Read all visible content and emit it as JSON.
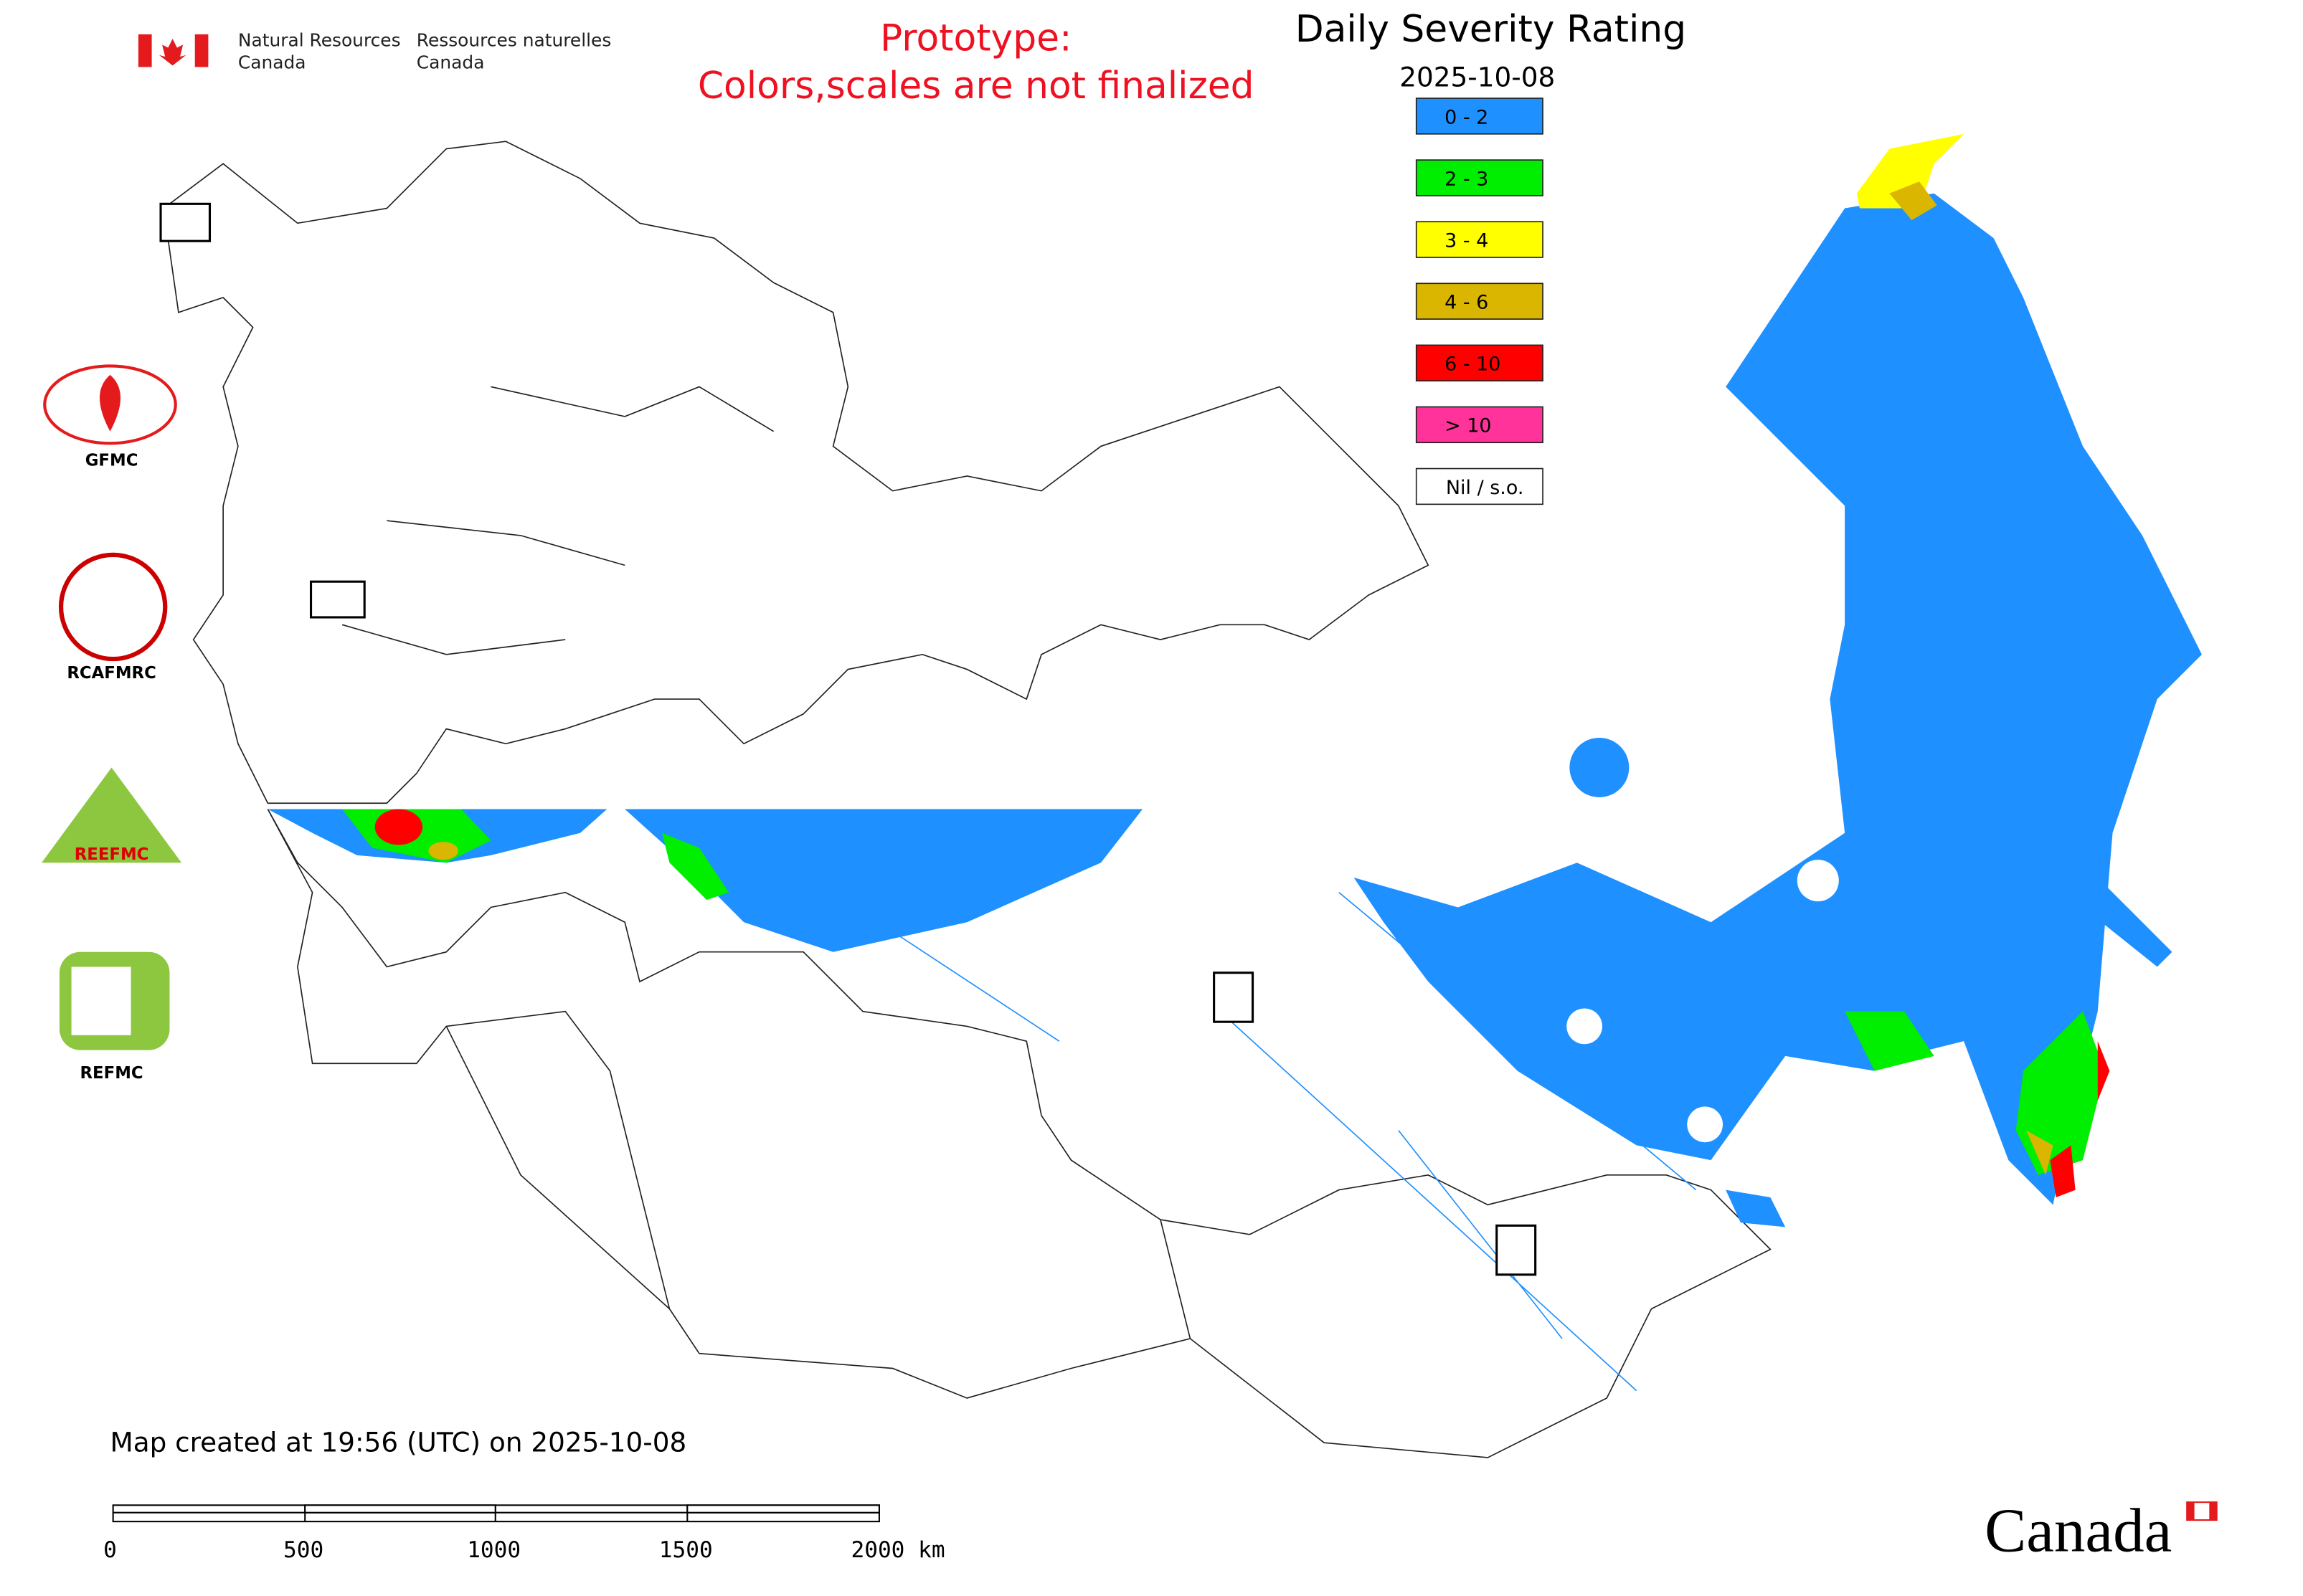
{
  "header": {
    "agency_en": [
      "Natural Resources",
      "Canada"
    ],
    "agency_fr": [
      "Ressources naturelles",
      "Canada"
    ]
  },
  "notice": [
    "Prototype:",
    "Colors,scales are not finalized"
  ],
  "legend": {
    "title": "Daily Severity Rating",
    "date": "2025-10-08",
    "items": [
      {
        "label": "0 - 2",
        "color": "#1e90ff"
      },
      {
        "label": "2 - 3",
        "color": "#00ee00"
      },
      {
        "label": "3 - 4",
        "color": "#ffff00"
      },
      {
        "label": "4 - 6",
        "color": "#dab600"
      },
      {
        "label": "6 - 10",
        "color": "#ff0000"
      },
      {
        "label": "> 10",
        "color": "#ff3399"
      },
      {
        "label": "Nil / s.o.",
        "color": "#ffffff"
      }
    ]
  },
  "logos": [
    "GFMC",
    "RCAFMRC",
    "REEFMC",
    "REFMC"
  ],
  "footer": {
    "created": "Map created at 19:56 (UTC) on 2025-10-08",
    "scale_labels": [
      "0",
      "500",
      "1000",
      "1500",
      "2000 km"
    ],
    "wordmark": "Canada"
  }
}
